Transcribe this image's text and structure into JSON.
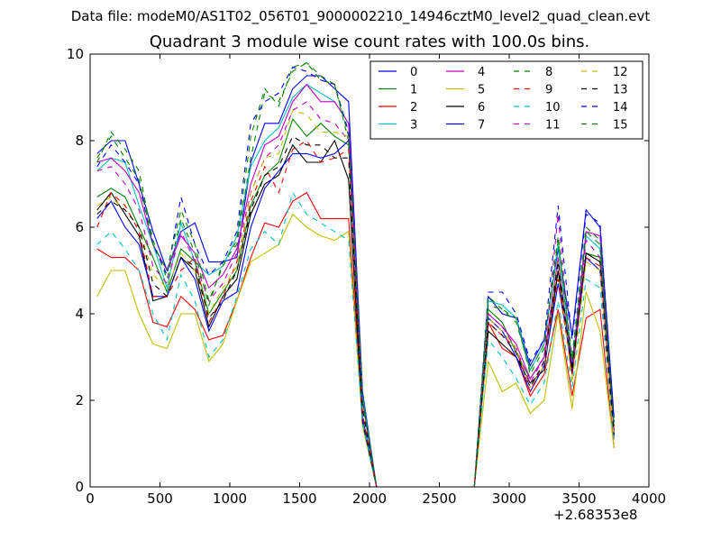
{
  "suptitle": "Data file: modeM0/AS1T02_056T01_9000002210_14946cztM0_level2_quad_clean.evt",
  "chart_data": {
    "type": "line",
    "title": "Quadrant 3 module wise count rates with 100.0s bins.",
    "xlabel": "",
    "ylabel": "",
    "x_offset_label": "+2.68353e8",
    "xlim": [
      0,
      4000
    ],
    "ylim": [
      0,
      10
    ],
    "x_ticks": [
      0,
      500,
      1000,
      1500,
      2000,
      2500,
      3000,
      3500,
      4000
    ],
    "y_ticks": [
      0,
      2,
      4,
      6,
      8,
      10
    ],
    "grid": false,
    "legend_placement": "top-right",
    "legend_columns": 4,
    "x": [
      50,
      150,
      250,
      350,
      450,
      550,
      650,
      750,
      850,
      950,
      1050,
      1150,
      1250,
      1350,
      1450,
      1550,
      1650,
      1750,
      1850,
      1950,
      2050,
      2150,
      2250,
      2350,
      2450,
      2550,
      2650,
      2750,
      2850,
      2950,
      3050,
      3150,
      3250,
      3350,
      3450,
      3550,
      3650,
      3750
    ],
    "series": [
      {
        "name": "0",
        "color": "#0000ff",
        "dash": "solid",
        "values": [
          7.7,
          8.0,
          8.0,
          7.0,
          5.9,
          5.0,
          5.9,
          6.1,
          5.2,
          5.2,
          5.3,
          7.5,
          8.4,
          8.4,
          9.2,
          9.5,
          9.5,
          9.2,
          8.9,
          2.2,
          0,
          0,
          0,
          0,
          0,
          0,
          0,
          0,
          4.4,
          4.0,
          3.9,
          2.8,
          3.4,
          5.5,
          3.5,
          6.4,
          6.0,
          1.6
        ]
      },
      {
        "name": "1",
        "color": "#008000",
        "dash": "solid",
        "values": [
          6.7,
          6.9,
          6.7,
          6.0,
          5.3,
          4.5,
          5.5,
          5.2,
          4.0,
          4.5,
          5.0,
          6.5,
          7.2,
          7.5,
          8.5,
          8.1,
          8.4,
          8.1,
          7.9,
          2.0,
          0,
          0,
          0,
          0,
          0,
          0,
          0,
          0,
          4.1,
          3.8,
          3.1,
          2.5,
          3.0,
          5.0,
          2.9,
          5.4,
          5.3,
          1.3
        ]
      },
      {
        "name": "2",
        "color": "#ff0000",
        "dash": "solid",
        "values": [
          5.5,
          5.3,
          5.3,
          5.0,
          3.8,
          3.7,
          4.4,
          4.1,
          3.4,
          3.5,
          4.3,
          5.3,
          6.1,
          6.0,
          6.6,
          6.8,
          6.2,
          6.2,
          6.2,
          1.6,
          0,
          0,
          0,
          0,
          0,
          0,
          0,
          0,
          3.8,
          3.2,
          3.0,
          2.1,
          2.6,
          4.1,
          2.1,
          3.9,
          4.1,
          0.9
        ]
      },
      {
        "name": "3",
        "color": "#00bfbf",
        "dash": "solid",
        "values": [
          7.3,
          7.6,
          7.5,
          6.5,
          5.6,
          4.6,
          6.1,
          5.2,
          4.9,
          5.1,
          5.8,
          7.4,
          8.0,
          8.3,
          9.0,
          9.3,
          9.1,
          8.9,
          8.4,
          2.1,
          0,
          0,
          0,
          0,
          0,
          0,
          0,
          0,
          4.3,
          4.2,
          3.9,
          2.7,
          3.3,
          5.6,
          2.8,
          5.8,
          5.5,
          1.3
        ]
      },
      {
        "name": "4",
        "color": "#bf00bf",
        "dash": "solid",
        "values": [
          7.5,
          7.6,
          7.3,
          6.8,
          5.6,
          5.0,
          5.8,
          5.4,
          4.6,
          4.9,
          5.5,
          7.0,
          7.9,
          8.1,
          8.9,
          9.3,
          8.9,
          8.9,
          8.4,
          2.0,
          0,
          0,
          0,
          0,
          0,
          0,
          0,
          0,
          4.0,
          3.7,
          3.3,
          2.5,
          3.0,
          5.3,
          2.6,
          5.9,
          5.8,
          1.3
        ]
      },
      {
        "name": "5",
        "color": "#bfbf00",
        "dash": "solid",
        "values": [
          4.4,
          5.0,
          5.0,
          4.0,
          3.3,
          3.2,
          4.0,
          4.0,
          2.9,
          3.3,
          4.3,
          5.2,
          5.4,
          5.6,
          6.3,
          6.0,
          5.8,
          5.7,
          5.9,
          1.4,
          0,
          0,
          0,
          0,
          0,
          0,
          0,
          0,
          2.9,
          2.2,
          2.4,
          1.7,
          2.0,
          4.0,
          1.8,
          4.5,
          3.6,
          0.9
        ]
      },
      {
        "name": "6",
        "color": "#000000",
        "dash": "solid",
        "values": [
          6.4,
          6.8,
          6.3,
          5.8,
          4.3,
          4.4,
          5.3,
          5.0,
          3.7,
          4.4,
          4.8,
          6.3,
          7.0,
          7.2,
          7.9,
          7.5,
          7.5,
          8.0,
          7.1,
          1.5,
          0,
          0,
          0,
          0,
          0,
          0,
          0,
          0,
          3.6,
          3.3,
          3.0,
          2.4,
          2.7,
          5.0,
          2.6,
          5.4,
          5.2,
          1.2
        ]
      },
      {
        "name": "7",
        "color": "#0000ff",
        "dash": "solid",
        "values": [
          6.2,
          6.6,
          6.0,
          5.6,
          4.4,
          4.4,
          5.3,
          4.8,
          3.6,
          4.3,
          4.5,
          6.0,
          6.9,
          7.3,
          7.7,
          7.7,
          7.6,
          7.7,
          8.0,
          1.6,
          0,
          0,
          0,
          0,
          0,
          0,
          0,
          0,
          3.9,
          3.6,
          3.0,
          2.2,
          2.8,
          4.7,
          2.8,
          5.3,
          5.0,
          1.1
        ]
      },
      {
        "name": "8",
        "color": "#008000",
        "dash": "dashed",
        "values": [
          7.5,
          8.2,
          7.8,
          7.3,
          5.7,
          4.8,
          6.2,
          5.4,
          4.2,
          5.2,
          5.6,
          7.6,
          9.1,
          8.9,
          9.6,
          9.8,
          9.4,
          9.3,
          8.0,
          2.0,
          0,
          0,
          0,
          0,
          0,
          0,
          0,
          0,
          4.2,
          4.1,
          3.9,
          2.6,
          3.2,
          5.7,
          2.9,
          5.9,
          5.6,
          1.4
        ]
      },
      {
        "name": "9",
        "color": "#ff0000",
        "dash": "dashed",
        "values": [
          6.0,
          6.8,
          6.5,
          5.9,
          4.4,
          4.4,
          5.0,
          5.3,
          3.8,
          4.4,
          5.2,
          6.6,
          7.4,
          6.8,
          7.8,
          8.0,
          7.5,
          7.6,
          7.8,
          1.7,
          0,
          0,
          0,
          0,
          0,
          0,
          0,
          0,
          3.8,
          3.5,
          3.2,
          2.2,
          2.9,
          4.8,
          2.6,
          5.3,
          5.1,
          1.1
        ]
      },
      {
        "name": "10",
        "color": "#00bfbf",
        "dash": "dashed",
        "values": [
          5.6,
          5.9,
          5.5,
          5.0,
          4.0,
          3.4,
          4.9,
          4.3,
          3.0,
          3.4,
          4.4,
          5.5,
          5.9,
          5.6,
          6.8,
          6.3,
          6.1,
          5.9,
          5.7,
          1.5,
          0,
          0,
          0,
          0,
          0,
          0,
          0,
          0,
          3.4,
          3.0,
          2.5,
          1.9,
          2.4,
          4.3,
          2.3,
          4.8,
          4.6,
          1.0
        ]
      },
      {
        "name": "11",
        "color": "#bf00bf",
        "dash": "dashed",
        "values": [
          7.3,
          7.4,
          7.0,
          6.4,
          5.1,
          4.7,
          5.9,
          5.2,
          4.3,
          4.7,
          5.4,
          6.8,
          7.6,
          7.9,
          8.7,
          8.9,
          8.5,
          8.4,
          8.0,
          1.9,
          0,
          0,
          0,
          0,
          0,
          0,
          0,
          0,
          4.0,
          3.7,
          3.2,
          2.4,
          3.0,
          6.3,
          2.7,
          5.7,
          5.3,
          1.3
        ]
      },
      {
        "name": "12",
        "color": "#bfbf00",
        "dash": "dashed",
        "values": [
          6.5,
          6.7,
          6.4,
          6.0,
          4.9,
          4.6,
          5.4,
          5.0,
          4.0,
          4.6,
          5.1,
          6.8,
          7.6,
          7.7,
          8.7,
          8.6,
          8.2,
          8.2,
          8.1,
          1.9,
          0,
          0,
          0,
          0,
          0,
          0,
          0,
          0,
          3.9,
          3.6,
          3.2,
          2.3,
          2.8,
          5.2,
          2.4,
          5.2,
          5.0,
          1.1
        ]
      },
      {
        "name": "13",
        "color": "#000000",
        "dash": "dashed",
        "values": [
          6.3,
          6.6,
          6.4,
          6.0,
          4.7,
          4.4,
          5.3,
          5.1,
          3.9,
          4.3,
          5.0,
          6.4,
          7.2,
          7.4,
          8.1,
          7.9,
          7.9,
          7.6,
          7.6,
          1.8,
          0,
          0,
          0,
          0,
          0,
          0,
          0,
          0,
          3.8,
          3.5,
          3.1,
          2.3,
          2.9,
          5.2,
          2.7,
          5.4,
          5.2,
          1.2
        ]
      },
      {
        "name": "14",
        "color": "#0000ff",
        "dash": "dashed",
        "values": [
          7.4,
          7.9,
          7.5,
          7.0,
          5.6,
          4.9,
          6.7,
          5.6,
          4.9,
          5.2,
          5.9,
          8.4,
          8.9,
          9.1,
          9.7,
          9.6,
          9.4,
          9.3,
          8.2,
          2.0,
          0,
          0,
          0,
          0,
          0,
          0,
          0,
          0,
          4.5,
          4.5,
          4.0,
          2.9,
          3.4,
          6.5,
          3.4,
          6.3,
          6.1,
          1.5
        ]
      },
      {
        "name": "15",
        "color": "#008000",
        "dash": "dashed",
        "values": [
          7.6,
          8.1,
          7.6,
          7.1,
          5.6,
          5.0,
          6.4,
          5.6,
          4.3,
          5.1,
          5.7,
          8.1,
          9.2,
          8.8,
          9.7,
          9.8,
          9.5,
          9.3,
          8.1,
          2.0,
          0,
          0,
          0,
          0,
          0,
          0,
          0,
          0,
          4.4,
          4.1,
          3.8,
          2.7,
          3.3,
          5.8,
          3.0,
          6.0,
          5.7,
          1.4
        ]
      }
    ]
  }
}
